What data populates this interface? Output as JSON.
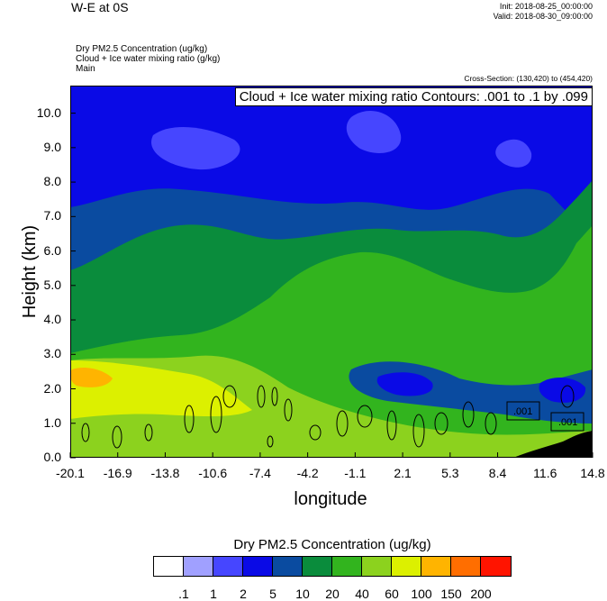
{
  "header": {
    "title": "W-E at 0S",
    "init": "Init: 2018-08-25_00:00:00",
    "valid": "Valid: 2018-08-30_09:00:00",
    "field1": "Dry PM2.5 Concentration   (ug/kg)",
    "field2": "Cloud + Ice water mixing ratio   (g/kg)",
    "field3": "Main",
    "cross_section": "Cross-Section: (130,420) to (454,420)"
  },
  "chart_data": {
    "type": "heatmap",
    "title": "W-E at 0S",
    "xlabel": "longitude",
    "ylabel": "Height (km)",
    "x_ticks": [
      "-20.1",
      "-16.9",
      "-13.8",
      "-10.6",
      "-7.4",
      "-4.2",
      "-1.1",
      "2.1",
      "5.3",
      "8.4",
      "11.6",
      "14.8"
    ],
    "y_ticks": [
      "0.0",
      "1.0",
      "2.0",
      "3.0",
      "4.0",
      "5.0",
      "6.0",
      "7.0",
      "8.0",
      "9.0",
      "10.0"
    ],
    "xlim": [
      -20.1,
      14.8
    ],
    "ylim": [
      0,
      10.8
    ],
    "contour_label": "Cloud + Ice water mixing ratio Contours: .001 to .1 by .099",
    "contour_values": [
      ".001",
      ".001"
    ],
    "colorbar": {
      "title": "Dry PM2.5 Concentration  (ug/kg)",
      "labels": [
        ".1",
        "1",
        "2",
        "5",
        "10",
        "20",
        "40",
        "60",
        "100",
        "150",
        "200"
      ],
      "colors": [
        "#ffffff",
        "#a0a0ff",
        "#4646ff",
        "#0a0ae6",
        "#0a4ba0",
        "#0a8c3c",
        "#32b41e",
        "#8cd21e",
        "#dcf000",
        "#ffb400",
        "#ff6e00",
        "#ff1400"
      ]
    }
  }
}
